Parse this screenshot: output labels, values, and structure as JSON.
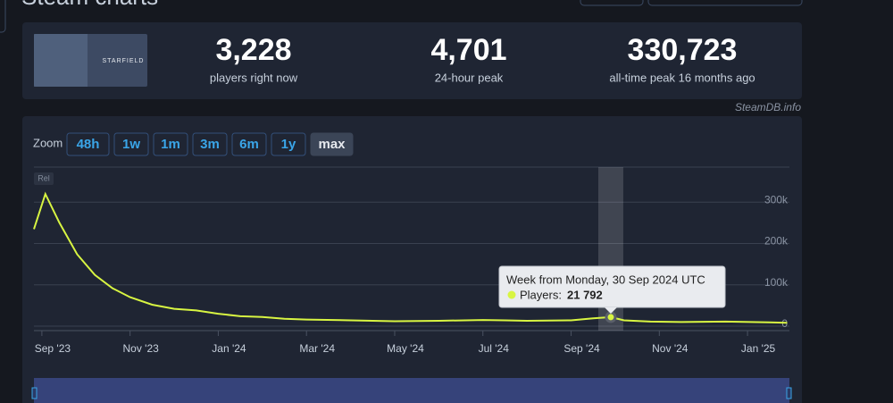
{
  "page_title": "Steam charts",
  "game_image_text": "STARFIELD",
  "stats": [
    {
      "value": "3,228",
      "label": "players right now"
    },
    {
      "value": "4,701",
      "label": "24-hour peak"
    },
    {
      "value": "330,723",
      "label": "all-time peak 16 months ago"
    }
  ],
  "watermark": "SteamDB.info",
  "zoom": {
    "label": "Zoom",
    "buttons": [
      "48h",
      "1w",
      "1m",
      "3m",
      "6m",
      "1y",
      "max"
    ],
    "active": "max"
  },
  "rel_badge": "Rel",
  "tooltip": {
    "title": "Week from Monday, 30 Sep 2024 UTC",
    "label": "Players:",
    "value": "21 792"
  },
  "chart_data": {
    "type": "line",
    "series": [
      {
        "name": "Players",
        "color": "#d8f542",
        "x": [
          -0.18,
          0.08,
          0.4,
          0.8,
          1.2,
          1.6,
          2.0,
          2.5,
          3.0,
          3.5,
          4.0,
          4.5,
          5.0,
          5.5,
          6.0,
          7.0,
          8.0,
          9.0,
          10.0,
          10.5,
          11.0,
          12.0,
          12.5,
          12.9,
          13.2,
          13.8,
          14.5,
          15.5,
          16.5,
          16.9
        ],
        "values": [
          235000,
          320000,
          250000,
          174000,
          124000,
          92000,
          70000,
          52000,
          42000,
          38000,
          30000,
          24000,
          22000,
          18000,
          16000,
          14000,
          12000,
          13000,
          15000,
          14000,
          13000,
          14000,
          19000,
          21792,
          14000,
          11000,
          10000,
          11000,
          9000,
          8000
        ]
      }
    ],
    "xlim": [
      -0.18,
      16.95
    ],
    "xticks": [
      {
        "value": 0,
        "label": "Sep '23"
      },
      {
        "value": 2,
        "label": "Nov '23"
      },
      {
        "value": 4,
        "label": "Jan '24"
      },
      {
        "value": 6,
        "label": "Mar '24"
      },
      {
        "value": 8,
        "label": "May '24"
      },
      {
        "value": 10,
        "label": "Jul '24"
      },
      {
        "value": 12,
        "label": "Sep '24"
      },
      {
        "value": 14,
        "label": "Nov '24"
      },
      {
        "value": 16,
        "label": "Jan '25"
      }
    ],
    "ylim": [
      0,
      385000
    ],
    "yticks": [
      0,
      {
        "value": 100000,
        "label": "100k"
      },
      {
        "value": 200000,
        "label": "200k"
      },
      {
        "value": 300000,
        "label": "300k"
      }
    ],
    "grid": true,
    "highlight_index": 23
  }
}
